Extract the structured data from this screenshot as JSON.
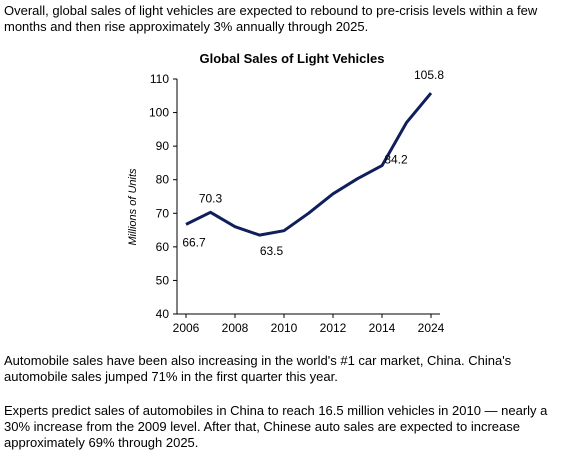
{
  "text": {
    "intro": "Overall, global sales of light vehicles are expected to rebound to pre-crisis levels within a few months and then rise approximately 3% annually through 2025.",
    "china_para": "Automobile sales have been also increasing in the world's #1 car market, China. China's automobile sales jumped 71% in the first quarter this year.",
    "forecast_para": "Experts predict sales of automobiles in China to reach 16.5 million vehicles in 2010 — nearly a 30% increase from the 2009 level. After that, Chinese auto sales are expected to increase approximately 69% through 2025."
  },
  "chart_data": {
    "type": "line",
    "title": "Global Sales of Light Vehicles",
    "ylabel": "Millions of Units",
    "xlabel": "",
    "ylim": [
      40,
      110
    ],
    "yticks": [
      40,
      50,
      60,
      70,
      80,
      90,
      100,
      110
    ],
    "xticks": [
      "2006",
      "2008",
      "2010",
      "2012",
      "2014",
      "2024"
    ],
    "line_color": "#0f1f5c",
    "points": [
      {
        "x": 2006,
        "y": 66.7
      },
      {
        "x": 2007,
        "y": 70.3
      },
      {
        "x": 2008,
        "y": 66.0
      },
      {
        "x": 2009,
        "y": 63.5
      },
      {
        "x": 2010,
        "y": 64.8
      },
      {
        "x": 2011,
        "y": 70.0
      },
      {
        "x": 2012,
        "y": 75.8
      },
      {
        "x": 2013,
        "y": 80.3
      },
      {
        "x": 2014,
        "y": 84.2
      },
      {
        "x": 2015,
        "y": 97.0
      },
      {
        "x": 2024,
        "y": 105.8
      }
    ],
    "data_labels": [
      {
        "x": 2006,
        "text": "66.7"
      },
      {
        "x": 2007,
        "text": "70.3"
      },
      {
        "x": 2009,
        "text": "63.5"
      },
      {
        "x": 2014,
        "text": "84.2"
      },
      {
        "x": 2024,
        "text": "105.8"
      }
    ]
  }
}
